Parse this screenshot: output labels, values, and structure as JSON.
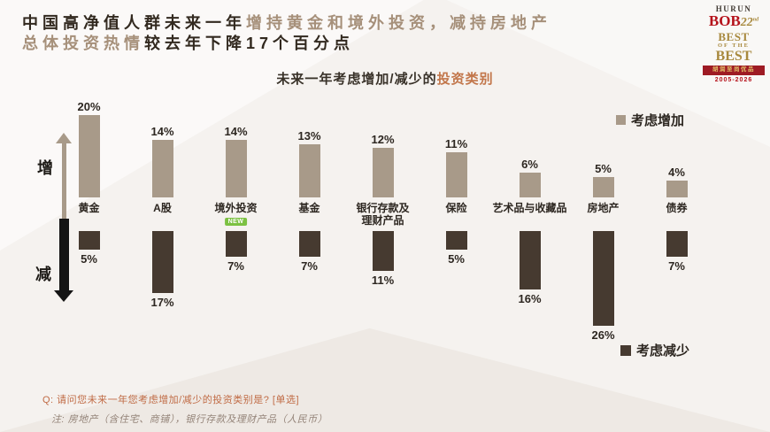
{
  "title": {
    "line1_dark": "中国高净值人群未来一年",
    "line1_accent": "增持黄金和境外投资，减持房地产",
    "line2_accent": "总体投资热情",
    "line2_dark": "较去年下降17个百分点"
  },
  "logo": {
    "hurun": "HURUN",
    "bob": "BOB",
    "edition": "22",
    "edition_suffix": "nd",
    "best1": "BEST",
    "ofthe": "OF THE",
    "best2": "BEST",
    "band_cn": "胡润至尚优品",
    "years": "2005-2026"
  },
  "subtitle": {
    "plain": "未来一年考虑增加/减少的",
    "accent": "投资类别"
  },
  "legend": {
    "increase": "考虑增加",
    "decrease": "考虑减少"
  },
  "axis": {
    "increase_label": "增",
    "decrease_label": "减"
  },
  "footer": {
    "question": "Q: 请问您未来一年您考虑增加/减少的投资类别是? [单选]",
    "note": "注: 房地产（含住宅、商铺），银行存款及理财产品（人民币）"
  },
  "colors": {
    "increase_bar": "#a89a89",
    "decrease_bar": "#463a30",
    "title_dark": "#32291f",
    "title_accent": "#a6907a",
    "subtitle_accent": "#c2764a",
    "question_text": "#c06b45",
    "note_text": "#95857a",
    "new_badge": "#7cc142",
    "logo_red": "#b5121b",
    "logo_gold": "#a8893e"
  },
  "chart_data": {
    "type": "bar",
    "orientation": "diverging-vertical",
    "title": "未来一年考虑增加/减少的投资类别",
    "unit": "%",
    "categories": [
      "黄金",
      "A股",
      "境外投资",
      "基金",
      "银行存款及理财产品",
      "保险",
      "艺术品与收藏品",
      "房地产",
      "债券"
    ],
    "categories_display": [
      "黄金",
      "A股",
      "境外投资",
      "基金",
      "银行存款及\n理财产品",
      "保险",
      "艺术品与收藏品",
      "房地产",
      "债券"
    ],
    "series": [
      {
        "name": "考虑增加",
        "values": [
          20,
          14,
          14,
          13,
          12,
          11,
          6,
          5,
          4
        ]
      },
      {
        "name": "考虑减少",
        "values": [
          5,
          17,
          7,
          7,
          11,
          5,
          16,
          26,
          7
        ]
      }
    ],
    "new_badge": {
      "category_index": 2,
      "label": "NEW"
    },
    "legend_position": "right",
    "grid": false,
    "ylim_increase": [
      0,
      20
    ],
    "ylim_decrease": [
      0,
      26
    ]
  }
}
